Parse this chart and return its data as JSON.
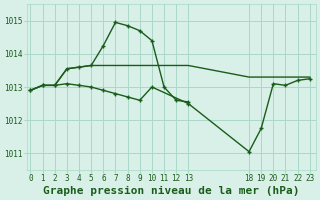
{
  "background_color": "#d8f0e8",
  "grid_color": "#aad8c8",
  "line_color": "#1a5c1a",
  "title": "Graphe pression niveau de la mer (hPa)",
  "title_fontsize": 8.0,
  "title_color": "#1a5c1a",
  "ylabel_ticks": [
    1011,
    1012,
    1013,
    1014,
    1015
  ],
  "xtick_positions": [
    0,
    1,
    2,
    3,
    4,
    5,
    6,
    7,
    8,
    9,
    10,
    11,
    12,
    13,
    18,
    19,
    20,
    21,
    22,
    23
  ],
  "xtick_labels": [
    "0",
    "1",
    "2",
    "3",
    "4",
    "5",
    "6",
    "7",
    "8",
    "9",
    "10",
    "11",
    "12",
    "13",
    "18",
    "19",
    "20",
    "21",
    "22",
    "23"
  ],
  "xlim": [
    -0.3,
    23.5
  ],
  "ylim": [
    1010.5,
    1015.5
  ],
  "line1_x": [
    0,
    1,
    2,
    3,
    4,
    5,
    6,
    7,
    8,
    9,
    10,
    11,
    12,
    13
  ],
  "line1_y": [
    1012.9,
    1013.05,
    1013.05,
    1013.55,
    1013.6,
    1013.65,
    1014.25,
    1014.95,
    1014.85,
    1014.7,
    1014.4,
    1013.0,
    1012.6,
    1012.55
  ],
  "line2_x": [
    0,
    1,
    2,
    3,
    4,
    5,
    6,
    7,
    8,
    9,
    10,
    11,
    12,
    13,
    18,
    19,
    20,
    21,
    22,
    23
  ],
  "line2_y": [
    1012.9,
    1013.05,
    1013.05,
    1013.55,
    1013.6,
    1013.65,
    1013.65,
    1013.65,
    1013.65,
    1013.65,
    1013.65,
    1013.65,
    1013.65,
    1013.65,
    1013.3,
    1013.3,
    1013.3,
    1013.3,
    1013.3,
    1013.3
  ],
  "line3_x": [
    0,
    1,
    2,
    3,
    4,
    5,
    6,
    7,
    8,
    9,
    10,
    13,
    18,
    19,
    20,
    21,
    22,
    23
  ],
  "line3_y": [
    1012.9,
    1013.05,
    1013.05,
    1013.1,
    1013.05,
    1013.0,
    1012.9,
    1012.8,
    1012.7,
    1012.6,
    1013.0,
    1012.5,
    1011.05,
    1011.75,
    1013.1,
    1013.05,
    1013.2,
    1013.25
  ],
  "marker": "+"
}
